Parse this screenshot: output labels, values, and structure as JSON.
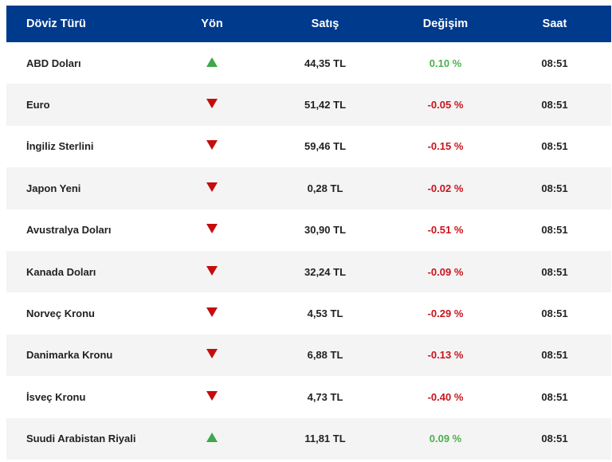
{
  "header": {
    "name": "Döviz Türü",
    "direction": "Yön",
    "sell": "Satış",
    "change": "Değişim",
    "time": "Saat"
  },
  "colors": {
    "header_bg": "#003a8c",
    "up": "#3ea84a",
    "down": "#c40d0d"
  },
  "rows": [
    {
      "name": "ABD Doları",
      "dir": "up",
      "sell": "44,35 TL",
      "change": "0.10 %",
      "time": "08:51"
    },
    {
      "name": "Euro",
      "dir": "down",
      "sell": "51,42 TL",
      "change": "-0.05 %",
      "time": "08:51"
    },
    {
      "name": "İngiliz Sterlini",
      "dir": "down",
      "sell": "59,46 TL",
      "change": "-0.15 %",
      "time": "08:51"
    },
    {
      "name": "Japon Yeni",
      "dir": "down",
      "sell": "0,28 TL",
      "change": "-0.02 %",
      "time": "08:51"
    },
    {
      "name": "Avustralya Doları",
      "dir": "down",
      "sell": "30,90 TL",
      "change": "-0.51 %",
      "time": "08:51"
    },
    {
      "name": "Kanada Doları",
      "dir": "down",
      "sell": "32,24 TL",
      "change": "-0.09 %",
      "time": "08:51"
    },
    {
      "name": "Norveç Kronu",
      "dir": "down",
      "sell": "4,53 TL",
      "change": "-0.29 %",
      "time": "08:51"
    },
    {
      "name": "Danimarka Kronu",
      "dir": "down",
      "sell": "6,88 TL",
      "change": "-0.13 %",
      "time": "08:51"
    },
    {
      "name": "İsveç Kronu",
      "dir": "down",
      "sell": "4,73 TL",
      "change": "-0.40 %",
      "time": "08:51"
    },
    {
      "name": "Suudi Arabistan Riyali",
      "dir": "up",
      "sell": "11,81 TL",
      "change": "0.09 %",
      "time": "08:51"
    }
  ]
}
